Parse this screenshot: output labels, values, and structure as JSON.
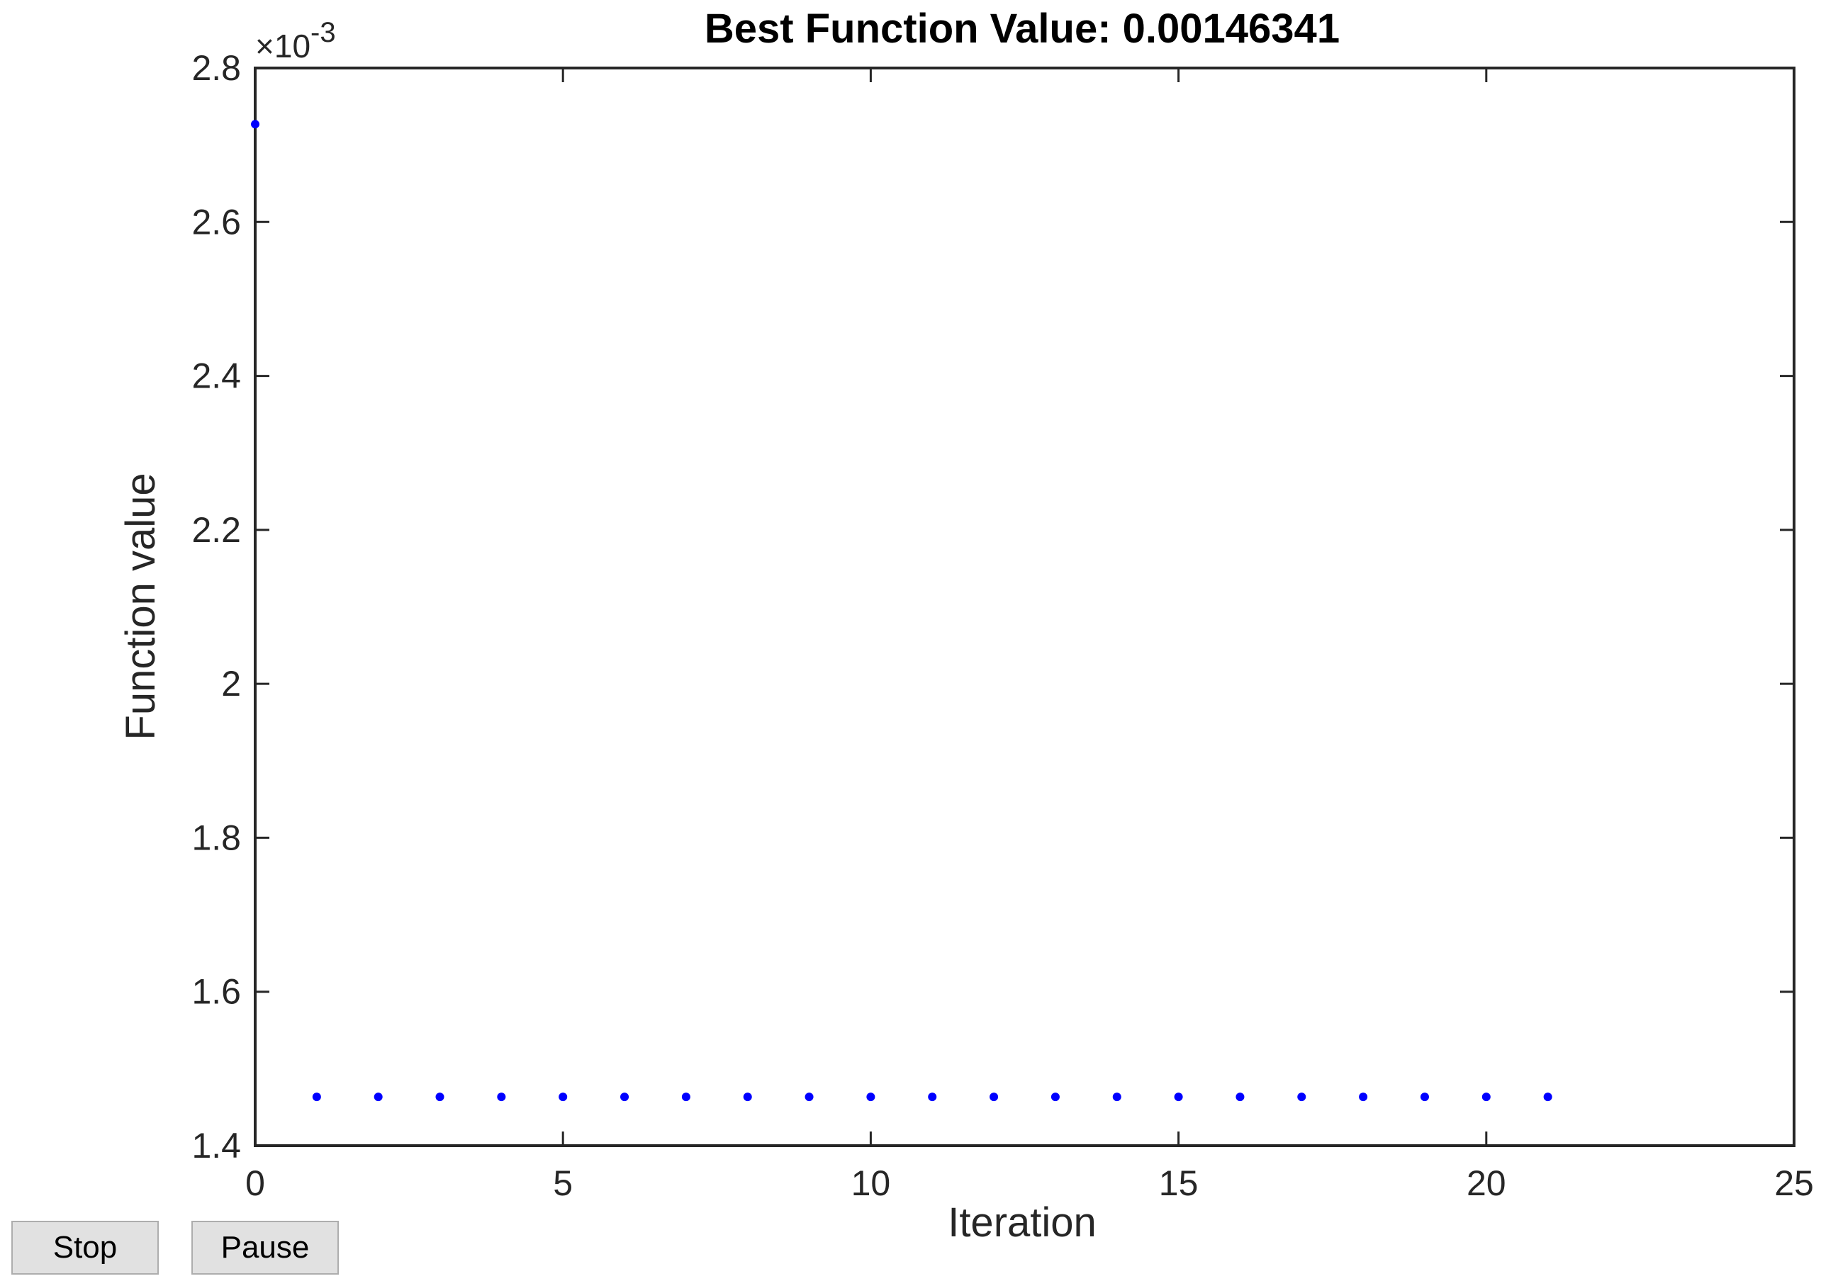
{
  "controls": {
    "stop_label": "Stop",
    "pause_label": "Pause"
  },
  "colors": {
    "marker": "#0000ff",
    "axes": "#262626",
    "background": "#ffffff",
    "button_face": "#e1e1e1"
  },
  "chart_data": {
    "type": "scatter",
    "title": "Best Function Value: 0.00146341",
    "xlabel": "Iteration",
    "ylabel": "Function value",
    "y_exponent_label": "×10",
    "y_exponent_power": "-3",
    "xlim": [
      0,
      25
    ],
    "ylim": [
      1.4,
      2.8
    ],
    "xticks": [
      "0",
      "5",
      "10",
      "15",
      "20",
      "25"
    ],
    "xtick_values": [
      0,
      5,
      10,
      15,
      20,
      25
    ],
    "yticks": [
      "1.4",
      "1.6",
      "1.8",
      "2",
      "2.2",
      "2.4",
      "2.6",
      "2.8"
    ],
    "ytick_values": [
      1.4,
      1.6,
      1.8,
      2.0,
      2.2,
      2.4,
      2.6,
      2.8
    ],
    "grid": false,
    "box": true,
    "series": [
      {
        "x": [
          0,
          1,
          2,
          3,
          4,
          5,
          6,
          7,
          8,
          9,
          10,
          11,
          12,
          13,
          14,
          15,
          16,
          17,
          18,
          19,
          20,
          21
        ],
        "y": [
          2.727,
          1.46341,
          1.46341,
          1.46341,
          1.46341,
          1.46341,
          1.46341,
          1.46341,
          1.46341,
          1.46341,
          1.46341,
          1.46341,
          1.46341,
          1.46341,
          1.46341,
          1.46341,
          1.46341,
          1.46341,
          1.46341,
          1.46341,
          1.46341,
          1.46341
        ]
      }
    ]
  }
}
